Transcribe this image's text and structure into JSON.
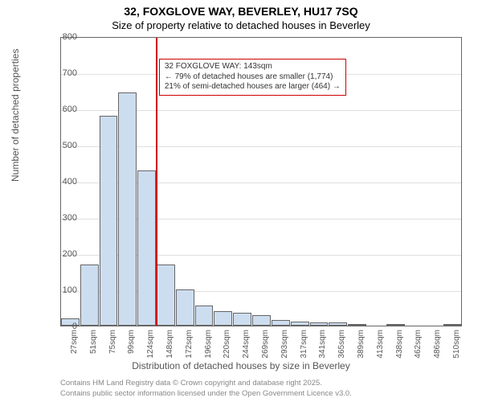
{
  "title_line1": "32, FOXGLOVE WAY, BEVERLEY, HU17 7SQ",
  "title_line2": "Size of property relative to detached houses in Beverley",
  "yaxis_label": "Number of detached properties",
  "xaxis_label": "Distribution of detached houses by size in Beverley",
  "chart": {
    "type": "histogram",
    "bar_fill": "#cdddf0",
    "bar_stroke": "#666666",
    "grid_color": "#e0e0e0",
    "background": "#ffffff",
    "ymin": 0,
    "ymax": 800,
    "ytick_step": 100,
    "categories": [
      "27sqm",
      "51sqm",
      "75sqm",
      "99sqm",
      "124sqm",
      "148sqm",
      "172sqm",
      "196sqm",
      "220sqm",
      "244sqm",
      "269sqm",
      "293sqm",
      "317sqm",
      "341sqm",
      "365sqm",
      "389sqm",
      "413sqm",
      "438sqm",
      "462sqm",
      "486sqm",
      "510sqm"
    ],
    "values": [
      20,
      170,
      580,
      645,
      430,
      170,
      100,
      55,
      40,
      35,
      30,
      15,
      12,
      10,
      8,
      5,
      0,
      3,
      0,
      0,
      2
    ],
    "marker": {
      "bin_index": 4.95,
      "color": "#cc0000",
      "lines": [
        "32 FOXGLOVE WAY: 143sqm",
        "← 79% of detached houses are smaller (1,774)",
        "21% of semi-detached houses are larger (464) →"
      ]
    }
  },
  "credits_line1": "Contains HM Land Registry data © Crown copyright and database right 2025.",
  "credits_line2": "Contains public sector information licensed under the Open Government Licence v3.0."
}
